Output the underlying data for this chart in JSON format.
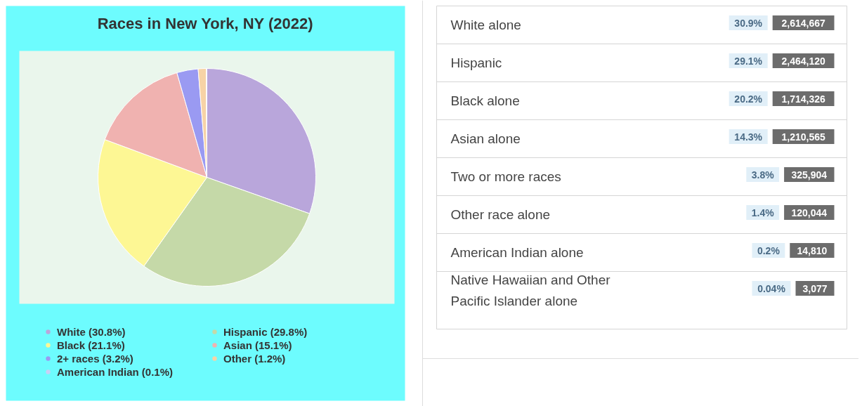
{
  "chart_data": [
    {
      "type": "pie",
      "title": "Races in New York, NY (2022)",
      "categories": [
        "White (30.8%)",
        "Hispanic (29.8%)",
        "Black (21.1%)",
        "Asian (15.1%)",
        "2+ races (3.2%)",
        "Other (1.2%)",
        "American Indian (0.1%)"
      ],
      "values": [
        30.8,
        29.8,
        21.1,
        15.1,
        3.2,
        1.2,
        0.1
      ],
      "colors": [
        "#b9a6db",
        "#c5d9a8",
        "#fdf794",
        "#f0b2b0",
        "#9a9af2",
        "#f7d3a6",
        "#c8d0f5"
      ],
      "legend": "bottom"
    },
    {
      "type": "other",
      "categories": [
        "White alone",
        "Hispanic",
        "Black alone",
        "Asian alone",
        "Two or more races",
        "Other race alone",
        "American Indian alone",
        "Native Hawaiian and Other Pacific Islander alone"
      ],
      "series": [
        {
          "color": "#e1eff8",
          "values": [
            30.9,
            29.1,
            20.2,
            14.3,
            3.8,
            1.4,
            0.2,
            0.04
          ],
          "value_labels": [
            "30.9%",
            "29.1%",
            "20.2%",
            "14.3%",
            "3.8%",
            "1.4%",
            "0.2%",
            "0.04%"
          ]
        },
        {
          "color": "#6c6c6c",
          "values": [
            2614667,
            2464120,
            1714326,
            1210565,
            325904,
            120044,
            14810,
            3077
          ],
          "value_labels": [
            "2,614,667",
            "2,464,120",
            "1,714,326",
            "1,210,565",
            "325,904",
            "120,044",
            "14,810",
            "3,077"
          ]
        }
      ]
    }
  ]
}
